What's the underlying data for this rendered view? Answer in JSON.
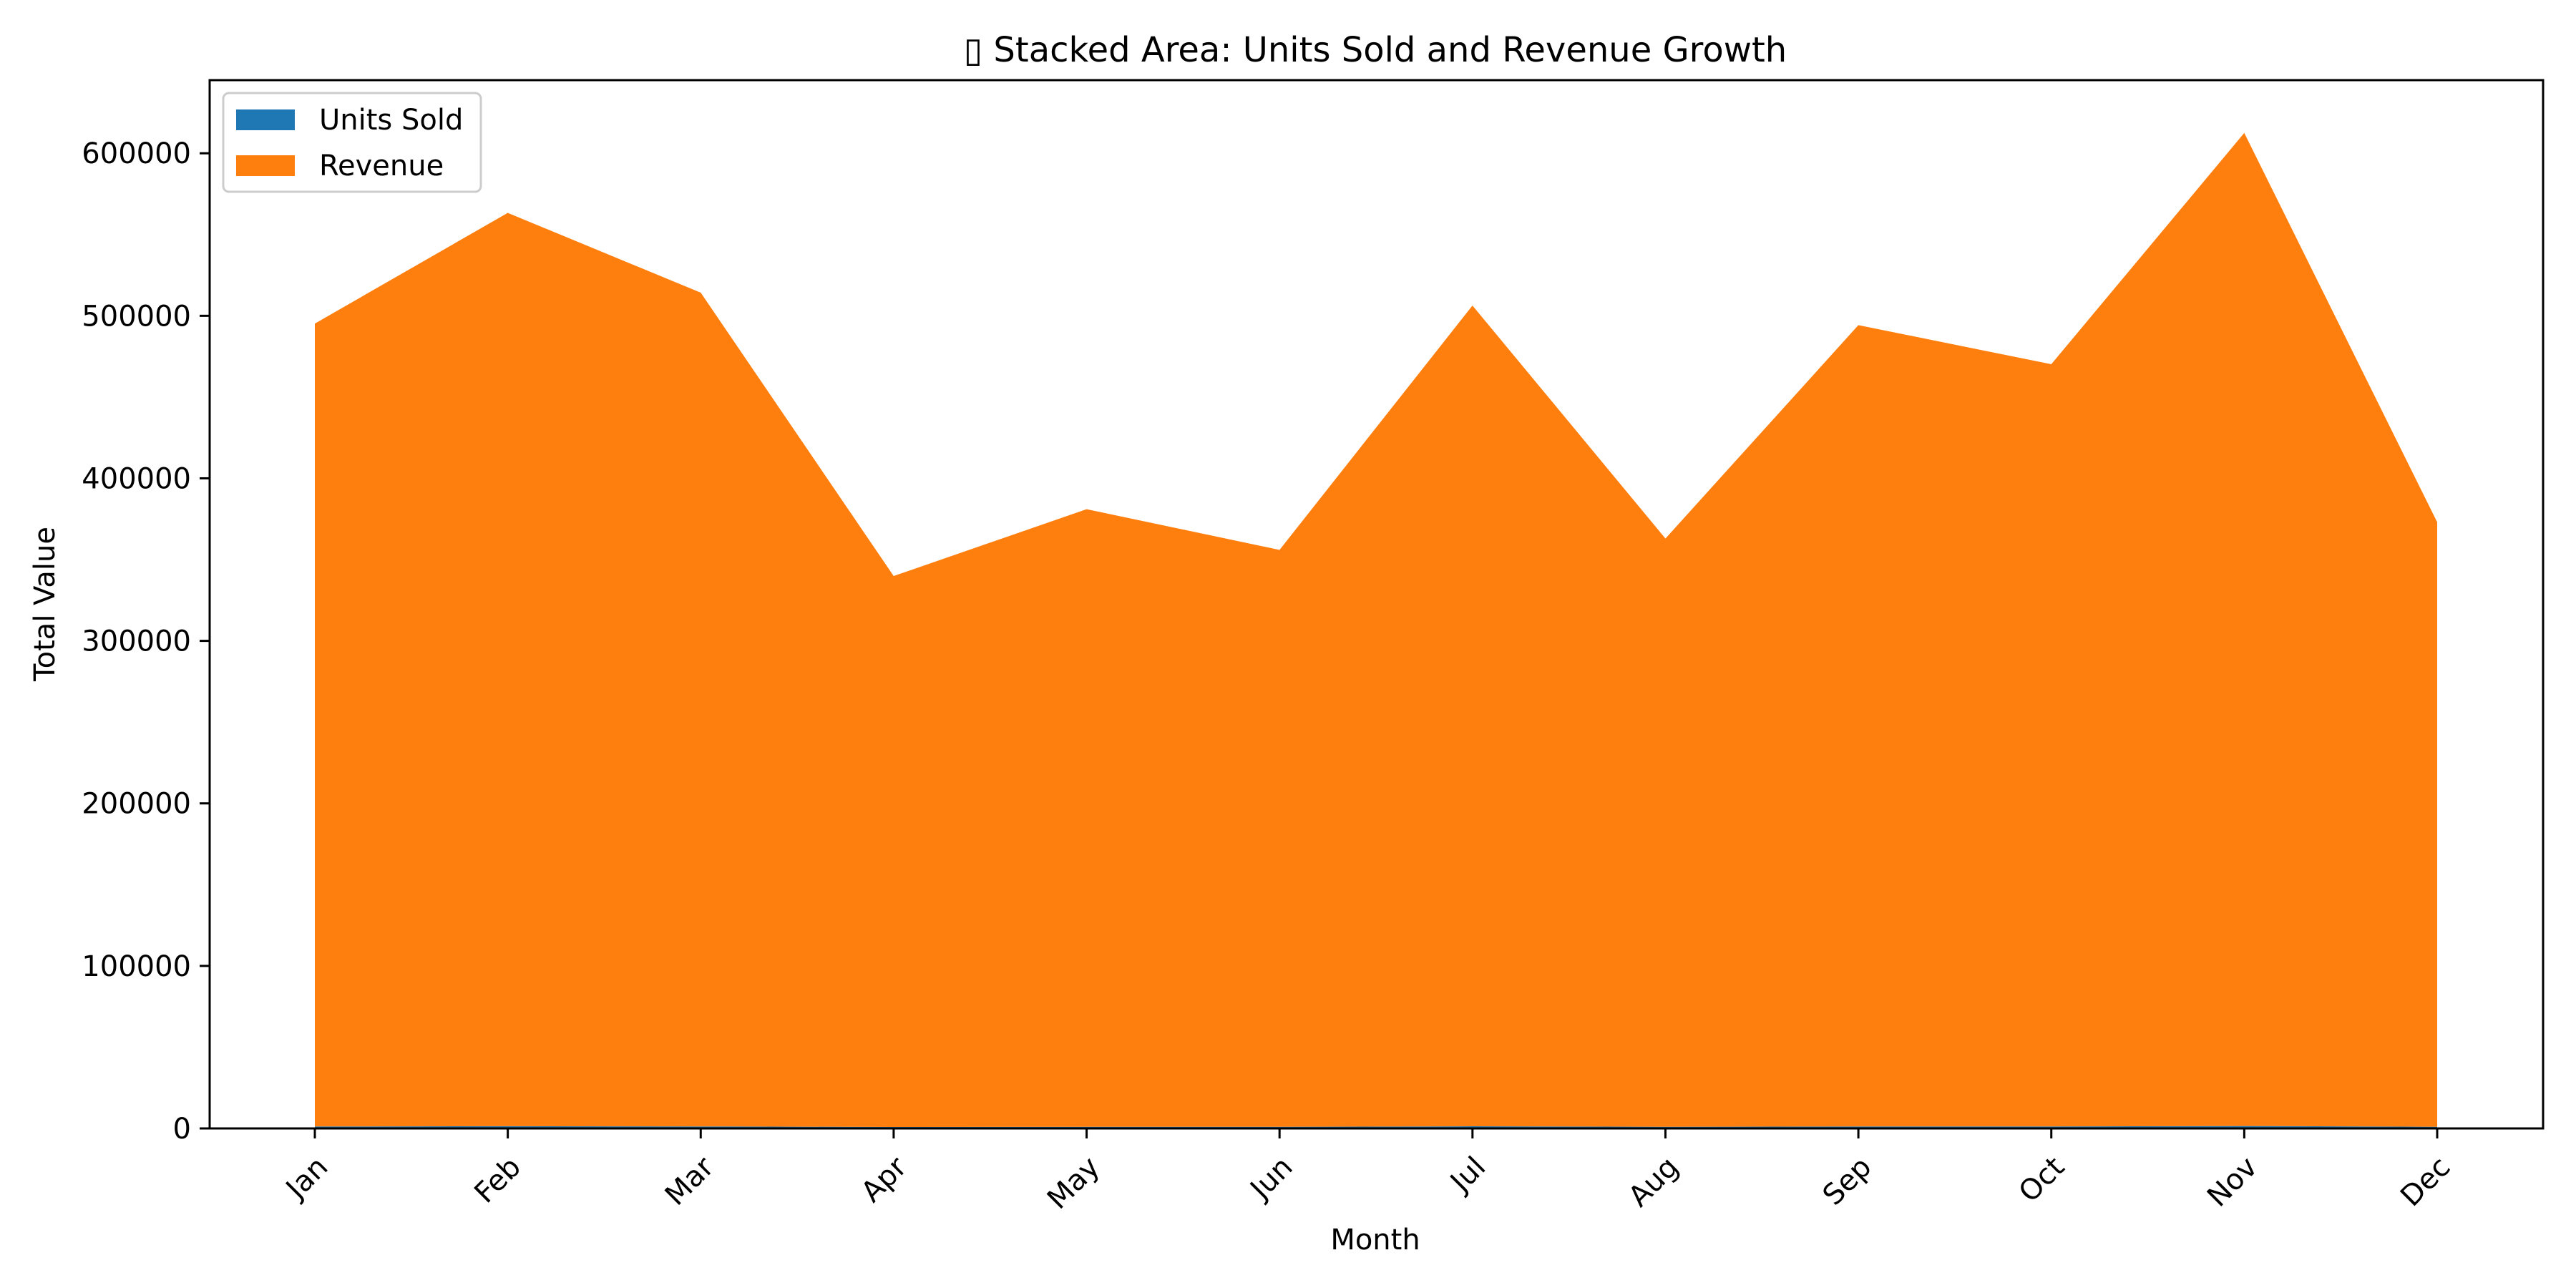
{
  "chart_data": {
    "type": "area",
    "stacked": true,
    "title": "▯ Stacked Area: Units Sold and Revenue Growth",
    "xlabel": "Month",
    "ylabel": "Total Value",
    "categories": [
      "Jan",
      "Feb",
      "Mar",
      "Apr",
      "May",
      "Jun",
      "Jul",
      "Aug",
      "Sep",
      "Oct",
      "Nov",
      "Dec"
    ],
    "ylim": [
      0,
      645000
    ],
    "yticks": [
      "0",
      "100000",
      "200000",
      "300000",
      "400000",
      "500000",
      "600000"
    ],
    "ytick_values": [
      0,
      100000,
      200000,
      300000,
      400000,
      500000,
      600000
    ],
    "grid": false,
    "legend_position": "top-left",
    "series": [
      {
        "name": "Units Sold",
        "color": "#1f77b4",
        "values": [
          1200,
          1350,
          1250,
          900,
          1000,
          950,
          1300,
          980,
          1250,
          1200,
          1500,
          1000
        ]
      },
      {
        "name": "Revenue",
        "color": "#ff7f0e",
        "values": [
          494000,
          562000,
          513000,
          339000,
          380000,
          355000,
          505000,
          362000,
          493000,
          469000,
          611000,
          372000
        ]
      }
    ]
  }
}
